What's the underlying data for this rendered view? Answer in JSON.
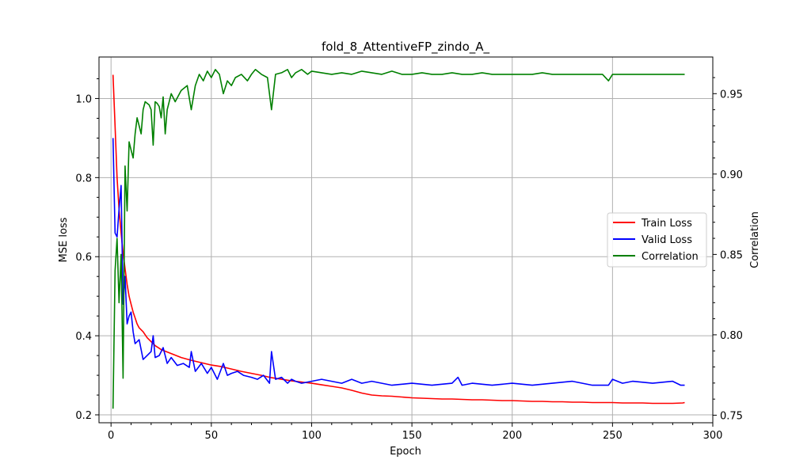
{
  "chart_data": {
    "type": "line",
    "title": "fold_8_AttentiveFP_zindo_A_",
    "xlabel": "Epoch",
    "ylabel": "MSE loss",
    "y2label": "Correlation",
    "xlim": [
      -6,
      300
    ],
    "ylim": [
      0.18,
      1.105
    ],
    "y2lim": [
      0.7453,
      0.9728
    ],
    "xticks": [
      "0",
      "50",
      "100",
      "150",
      "200",
      "250",
      "300"
    ],
    "yticks": [
      "0.2",
      "0.4",
      "0.6",
      "0.8",
      "1.0"
    ],
    "y2ticks": [
      "0.75",
      "0.80",
      "0.85",
      "0.90",
      "0.95"
    ],
    "grid": true,
    "legend_position": "center-right",
    "series": [
      {
        "name": "Train Loss",
        "color": "#ff0000",
        "axis": "left",
        "x": [
          1,
          2,
          3,
          4,
          5,
          6,
          7,
          8,
          9,
          10,
          11,
          12,
          13,
          14,
          15,
          16,
          18,
          20,
          22,
          25,
          30,
          35,
          40,
          45,
          50,
          55,
          60,
          65,
          70,
          75,
          80,
          85,
          90,
          95,
          100,
          105,
          110,
          115,
          120,
          125,
          130,
          135,
          140,
          145,
          150,
          155,
          160,
          165,
          170,
          175,
          180,
          185,
          190,
          195,
          200,
          205,
          210,
          215,
          220,
          225,
          230,
          235,
          240,
          245,
          250,
          255,
          260,
          265,
          270,
          275,
          280,
          285,
          286
        ],
        "y": [
          1.06,
          0.93,
          0.8,
          0.72,
          0.66,
          0.61,
          0.57,
          0.53,
          0.5,
          0.48,
          0.46,
          0.445,
          0.43,
          0.42,
          0.415,
          0.41,
          0.395,
          0.385,
          0.375,
          0.365,
          0.355,
          0.345,
          0.338,
          0.332,
          0.326,
          0.322,
          0.316,
          0.31,
          0.305,
          0.3,
          0.294,
          0.29,
          0.286,
          0.283,
          0.28,
          0.276,
          0.272,
          0.268,
          0.262,
          0.255,
          0.25,
          0.248,
          0.247,
          0.245,
          0.243,
          0.242,
          0.241,
          0.24,
          0.24,
          0.239,
          0.238,
          0.238,
          0.237,
          0.236,
          0.236,
          0.235,
          0.234,
          0.234,
          0.233,
          0.233,
          0.232,
          0.232,
          0.231,
          0.231,
          0.231,
          0.23,
          0.23,
          0.23,
          0.229,
          0.229,
          0.229,
          0.23,
          0.231
        ]
      },
      {
        "name": "Valid Loss",
        "color": "#0000ff",
        "axis": "left",
        "x": [
          1,
          2,
          3,
          4,
          5,
          6,
          7,
          8,
          9,
          10,
          11,
          12,
          14,
          16,
          18,
          20,
          21,
          22,
          24,
          26,
          28,
          30,
          33,
          36,
          39,
          40,
          42,
          45,
          48,
          50,
          53,
          56,
          58,
          60,
          63,
          66,
          70,
          73,
          76,
          79,
          80,
          82,
          85,
          88,
          90,
          92,
          95,
          100,
          105,
          110,
          115,
          120,
          125,
          130,
          140,
          150,
          160,
          170,
          173,
          175,
          180,
          190,
          200,
          210,
          220,
          230,
          240,
          248,
          250,
          255,
          260,
          270,
          280,
          284,
          286
        ],
        "y": [
          0.9,
          0.66,
          0.65,
          0.72,
          0.78,
          0.48,
          0.55,
          0.43,
          0.45,
          0.46,
          0.41,
          0.38,
          0.39,
          0.34,
          0.35,
          0.36,
          0.4,
          0.345,
          0.35,
          0.37,
          0.33,
          0.345,
          0.325,
          0.33,
          0.32,
          0.36,
          0.31,
          0.33,
          0.305,
          0.32,
          0.29,
          0.33,
          0.3,
          0.305,
          0.31,
          0.3,
          0.295,
          0.29,
          0.3,
          0.28,
          0.36,
          0.29,
          0.295,
          0.28,
          0.29,
          0.285,
          0.28,
          0.285,
          0.29,
          0.285,
          0.28,
          0.29,
          0.28,
          0.285,
          0.275,
          0.28,
          0.275,
          0.28,
          0.295,
          0.275,
          0.28,
          0.275,
          0.28,
          0.275,
          0.28,
          0.285,
          0.275,
          0.275,
          0.29,
          0.28,
          0.285,
          0.28,
          0.285,
          0.275,
          0.275
        ]
      },
      {
        "name": "Correlation",
        "color": "#008000",
        "axis": "right",
        "x": [
          1,
          2,
          3,
          4,
          5,
          6,
          7,
          8,
          9,
          10,
          11,
          12,
          13,
          14,
          15,
          16,
          17,
          18,
          19,
          20,
          21,
          22,
          23,
          24,
          25,
          26,
          27,
          28,
          30,
          32,
          35,
          38,
          40,
          42,
          44,
          46,
          48,
          50,
          52,
          54,
          56,
          58,
          60,
          62,
          65,
          68,
          70,
          72,
          75,
          78,
          80,
          82,
          85,
          88,
          90,
          92,
          95,
          98,
          100,
          105,
          110,
          115,
          120,
          125,
          130,
          135,
          140,
          145,
          150,
          155,
          160,
          165,
          170,
          175,
          180,
          185,
          190,
          195,
          200,
          205,
          210,
          215,
          220,
          225,
          230,
          235,
          240,
          245,
          248,
          250,
          255,
          260,
          265,
          270,
          275,
          280,
          285,
          286
        ],
        "y": [
          0.754,
          0.84,
          0.86,
          0.82,
          0.85,
          0.773,
          0.905,
          0.877,
          0.92,
          0.915,
          0.91,
          0.925,
          0.935,
          0.93,
          0.925,
          0.94,
          0.945,
          0.944,
          0.943,
          0.94,
          0.918,
          0.945,
          0.944,
          0.942,
          0.935,
          0.948,
          0.925,
          0.94,
          0.95,
          0.945,
          0.952,
          0.955,
          0.94,
          0.955,
          0.962,
          0.958,
          0.964,
          0.96,
          0.965,
          0.962,
          0.95,
          0.958,
          0.955,
          0.96,
          0.962,
          0.958,
          0.962,
          0.965,
          0.962,
          0.96,
          0.94,
          0.962,
          0.963,
          0.965,
          0.96,
          0.963,
          0.965,
          0.962,
          0.964,
          0.963,
          0.962,
          0.963,
          0.962,
          0.964,
          0.963,
          0.962,
          0.964,
          0.962,
          0.962,
          0.963,
          0.962,
          0.962,
          0.963,
          0.962,
          0.962,
          0.963,
          0.962,
          0.962,
          0.962,
          0.962,
          0.962,
          0.963,
          0.962,
          0.962,
          0.962,
          0.962,
          0.962,
          0.962,
          0.958,
          0.962,
          0.962,
          0.962,
          0.962,
          0.962,
          0.962,
          0.962,
          0.962,
          0.962
        ]
      }
    ]
  }
}
